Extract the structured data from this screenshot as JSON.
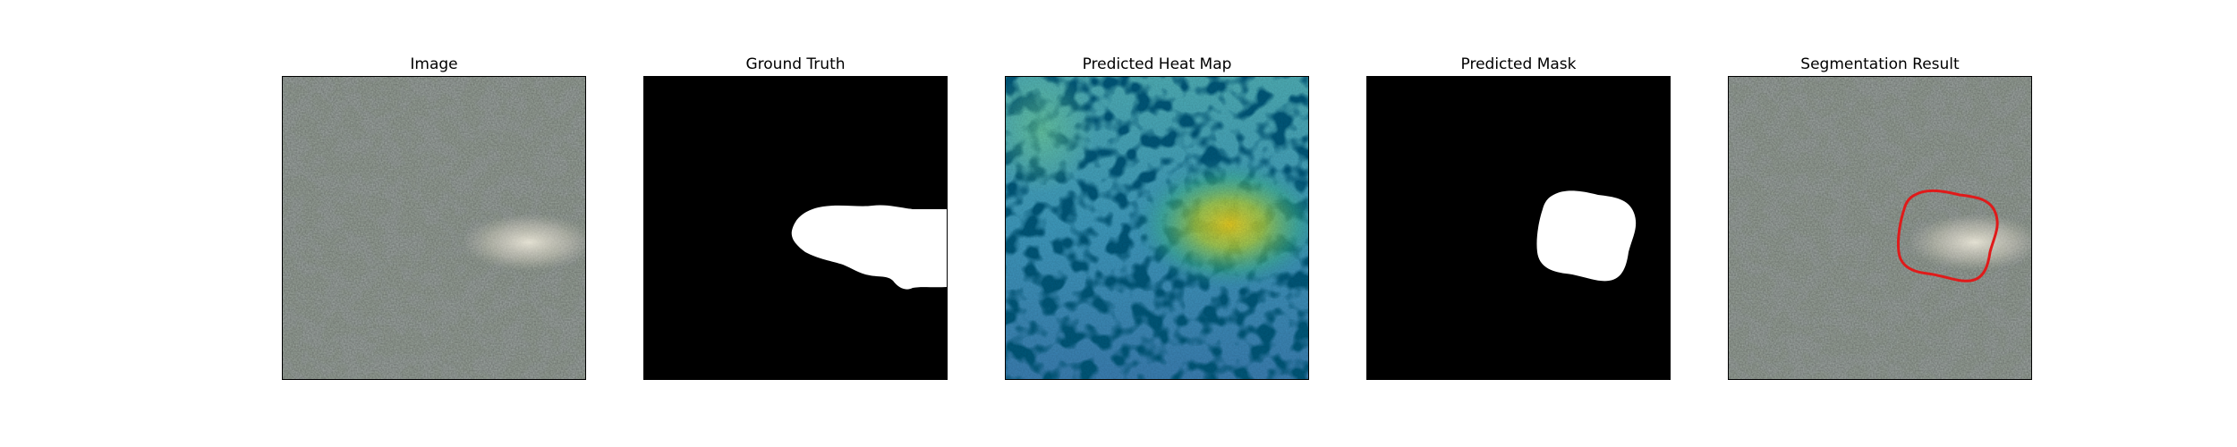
{
  "panels": [
    {
      "title": "Image"
    },
    {
      "title": "Ground Truth"
    },
    {
      "title": "Predicted Heat Map"
    },
    {
      "title": "Predicted Mask"
    },
    {
      "title": "Segmentation Result"
    }
  ],
  "colors": {
    "background": "#ffffff",
    "mask_foreground": "#ffffff",
    "mask_background": "#000000",
    "contour": "#e01a1a"
  }
}
